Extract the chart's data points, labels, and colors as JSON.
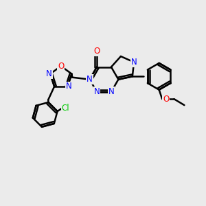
{
  "background_color": "#ebebeb",
  "bond_color": "#000000",
  "bond_width": 1.8,
  "atom_colors": {
    "N": "#0000ff",
    "O": "#ff0000",
    "Cl": "#00cc00",
    "C": "#000000"
  },
  "font_size_atoms": 8.5,
  "fig_width": 3.0,
  "fig_height": 3.0,
  "dpi": 100,
  "xlim": [
    0,
    10
  ],
  "ylim": [
    0,
    10
  ]
}
